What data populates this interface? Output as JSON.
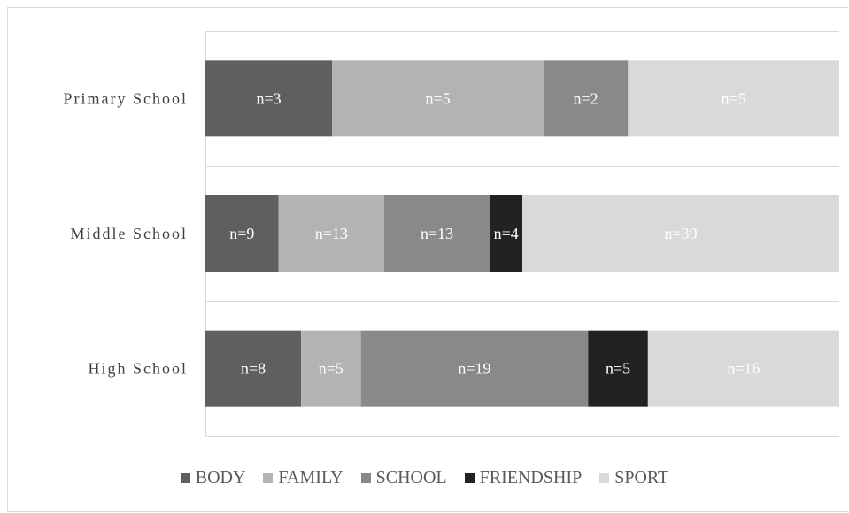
{
  "chart_data": {
    "type": "bar",
    "orientation": "horizontal",
    "stacked": true,
    "percent_stacked": true,
    "categories": [
      "Primary School",
      "Middle School",
      "High School"
    ],
    "series": [
      {
        "name": "BODY",
        "color": "#5f5f5f",
        "values": [
          3,
          9,
          8
        ],
        "labels": [
          "n=3",
          "n=9",
          "n=8"
        ]
      },
      {
        "name": "FAMILY",
        "color": "#b3b3b3",
        "values": [
          5,
          13,
          5
        ],
        "labels": [
          "n=5",
          "n=13",
          "n=5"
        ]
      },
      {
        "name": "SCHOOL",
        "color": "#898989",
        "values": [
          2,
          13,
          19
        ],
        "labels": [
          "n=2",
          "n=13",
          "n=19"
        ]
      },
      {
        "name": "FRIENDSHIP",
        "color": "#222222",
        "values": [
          0,
          4,
          5
        ],
        "labels": [
          "",
          "n=4",
          "n=5"
        ]
      },
      {
        "name": "SPORT",
        "color": "#d9d9d9",
        "values": [
          5,
          39,
          16
        ],
        "labels": [
          "n=5",
          "n=39",
          "n=16"
        ]
      }
    ],
    "title": "",
    "xlabel": "",
    "ylabel": "",
    "grid": "horizontal category separators",
    "legend_position": "bottom"
  }
}
